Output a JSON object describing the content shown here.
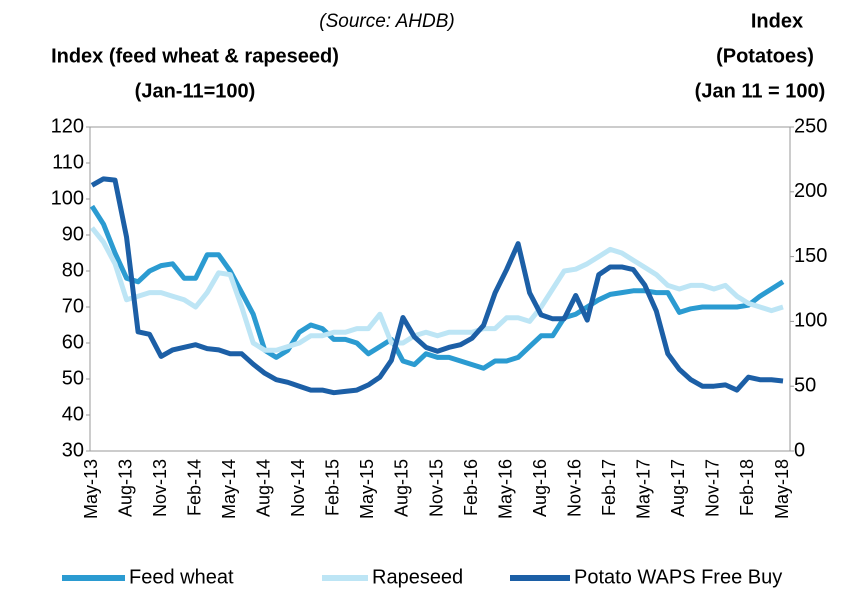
{
  "chart_data": {
    "type": "line",
    "source": "(Source: AHDB)",
    "ylabel": [
      "Index (feed wheat & rapeseed)",
      "(Jan-11=100)"
    ],
    "y2label": [
      "Index",
      "(Potatoes)",
      "(Jan 11 = 100)"
    ],
    "categories": [
      "May-13",
      null,
      null,
      "Aug-13",
      null,
      null,
      "Nov-13",
      null,
      null,
      "Feb-14",
      null,
      null,
      "May-14",
      null,
      null,
      "Aug-14",
      null,
      null,
      "Nov-14",
      null,
      null,
      "Feb-15",
      null,
      null,
      "May-15",
      null,
      null,
      "Aug-15",
      null,
      null,
      "Nov-15",
      null,
      null,
      "Feb-16",
      null,
      null,
      "May-16",
      null,
      null,
      "Aug-16",
      null,
      null,
      "Nov-16",
      null,
      null,
      "Feb-17",
      null,
      null,
      "May-17",
      null,
      null,
      "Aug-17",
      null,
      null,
      "Nov-17",
      null,
      null,
      "Feb-18",
      null,
      null,
      "May-18"
    ],
    "series": [
      {
        "name": "Feed wheat",
        "color": "#2b9bd1",
        "values": [
          98,
          93,
          85,
          78,
          77,
          80,
          81.5,
          82,
          78,
          78,
          84.5,
          84.5,
          80,
          74,
          68,
          58,
          56,
          58,
          63,
          65,
          64,
          61,
          61,
          60,
          57,
          59,
          61,
          55,
          54,
          57,
          56,
          56,
          55,
          54,
          53,
          55,
          55,
          56,
          59,
          62,
          62,
          67,
          68,
          70,
          72,
          73.5,
          74,
          74.5,
          74.5,
          74,
          74,
          68.5,
          69.5,
          70,
          70,
          70,
          70,
          70.5,
          73,
          75,
          77
        ]
      },
      {
        "name": "Rapeseed",
        "color": "#bde5f5",
        "values": [
          92,
          88,
          82,
          72,
          73,
          74,
          74,
          73,
          72,
          70,
          74,
          79.5,
          79,
          70,
          60,
          58,
          58,
          59,
          60,
          62,
          62,
          63,
          63,
          64,
          64,
          68,
          60,
          60,
          62,
          63,
          62,
          63,
          63,
          63,
          64,
          64,
          67,
          67,
          66,
          70,
          75,
          80,
          80.5,
          82,
          84,
          86,
          85,
          83,
          81,
          79,
          76,
          75,
          76,
          76,
          75,
          76,
          73,
          71,
          70,
          69,
          70
        ]
      },
      {
        "name": "Potato WAPS Free Buy",
        "color": "#1c5fa6",
        "axis": "y2",
        "values": [
          205,
          210,
          209,
          165,
          92,
          90,
          73,
          78,
          80,
          82,
          79,
          78,
          75,
          75,
          67,
          60,
          55,
          53,
          50,
          47,
          47,
          45,
          46,
          47,
          51,
          57,
          70,
          103,
          88,
          80,
          77,
          80,
          82,
          87,
          97,
          122,
          140,
          160,
          122,
          105,
          102,
          102,
          120,
          101,
          136,
          142,
          142,
          140,
          128,
          108,
          75,
          63,
          55,
          50,
          50,
          51,
          47,
          57,
          55,
          55,
          54
        ]
      }
    ],
    "ylim": [
      30,
      120
    ],
    "yticks": [
      30,
      40,
      50,
      60,
      70,
      80,
      90,
      100,
      110,
      120
    ],
    "y2lim": [
      0,
      250
    ],
    "y2ticks": [
      0,
      50,
      100,
      150,
      200,
      250
    ],
    "grid": false,
    "legend": "bottom"
  }
}
